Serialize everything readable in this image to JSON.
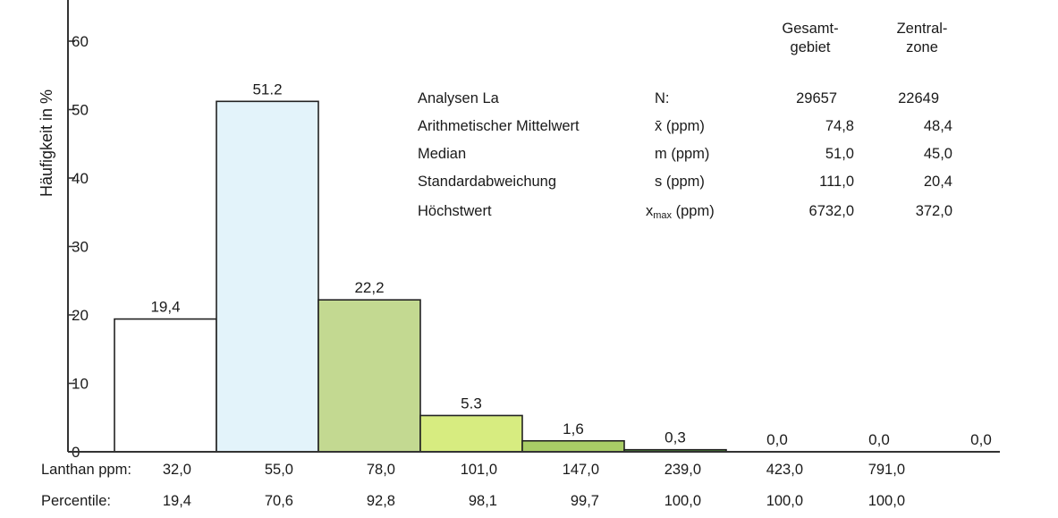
{
  "chart_data": {
    "type": "bar",
    "title": "",
    "xlabel": "Lanthan ppm:",
    "ylabel": "Häufigkeit in %",
    "ylim": [
      0,
      60
    ],
    "yticks": [
      "0",
      "10",
      "20",
      "30",
      "40",
      "50",
      "60"
    ],
    "bin_upper_limits": [
      "32,0",
      "55,0",
      "78,0",
      "101,0",
      "147,0",
      "239,0",
      "423,0",
      "791,0"
    ],
    "values": [
      19.4,
      51.2,
      22.2,
      5.3,
      1.6,
      0.3,
      0.0,
      0.0,
      0.0
    ],
    "value_labels": [
      "19,4",
      "51.2",
      "22,2",
      "5.3",
      "1,6",
      "0,3",
      "0,0",
      "0,0",
      "0,0"
    ],
    "bar_colors": [
      "#ffffff",
      "#e3f3fa",
      "#c3d991",
      "#d7ec80",
      "#a9cd66",
      "#57a040",
      "",
      "",
      ""
    ],
    "percentile_label": "Percentile:",
    "percentiles": [
      "19,4",
      "70,6",
      "92,8",
      "98,1",
      "99,7",
      "100,0",
      "100,0",
      "100,0"
    ],
    "grid": false,
    "legend": "none"
  },
  "stats_table": {
    "columns": [
      {
        "line1": "Gesamt-",
        "line2": "gebiet"
      },
      {
        "line1": "Zentral-",
        "line2": "zone"
      }
    ],
    "rows": [
      {
        "label": "Analysen La",
        "symbol": "N:",
        "sym_base": "",
        "sym_sub": "",
        "sym_unit": "",
        "v1": "29657",
        "v2": "22649"
      },
      {
        "label": "Arithmetischer Mittelwert",
        "symbol": "x̄ (ppm)",
        "sym_base": "",
        "sym_sub": "",
        "sym_unit": "",
        "v1": "74,8",
        "v2": "48,4"
      },
      {
        "label": "Median",
        "symbol": "m (ppm)",
        "sym_base": "",
        "sym_sub": "",
        "sym_unit": "",
        "v1": "51,0",
        "v2": "45,0"
      },
      {
        "label": "Standardabweichung",
        "symbol": "s (ppm)",
        "sym_base": "",
        "sym_sub": "",
        "sym_unit": "",
        "v1": "111,0",
        "v2": "20,4"
      },
      {
        "label": "Höchstwert",
        "symbol": "",
        "sym_base": "x",
        "sym_sub": "max",
        "sym_unit": " (ppm)",
        "v1": "6732,0",
        "v2": "372,0"
      }
    ]
  }
}
